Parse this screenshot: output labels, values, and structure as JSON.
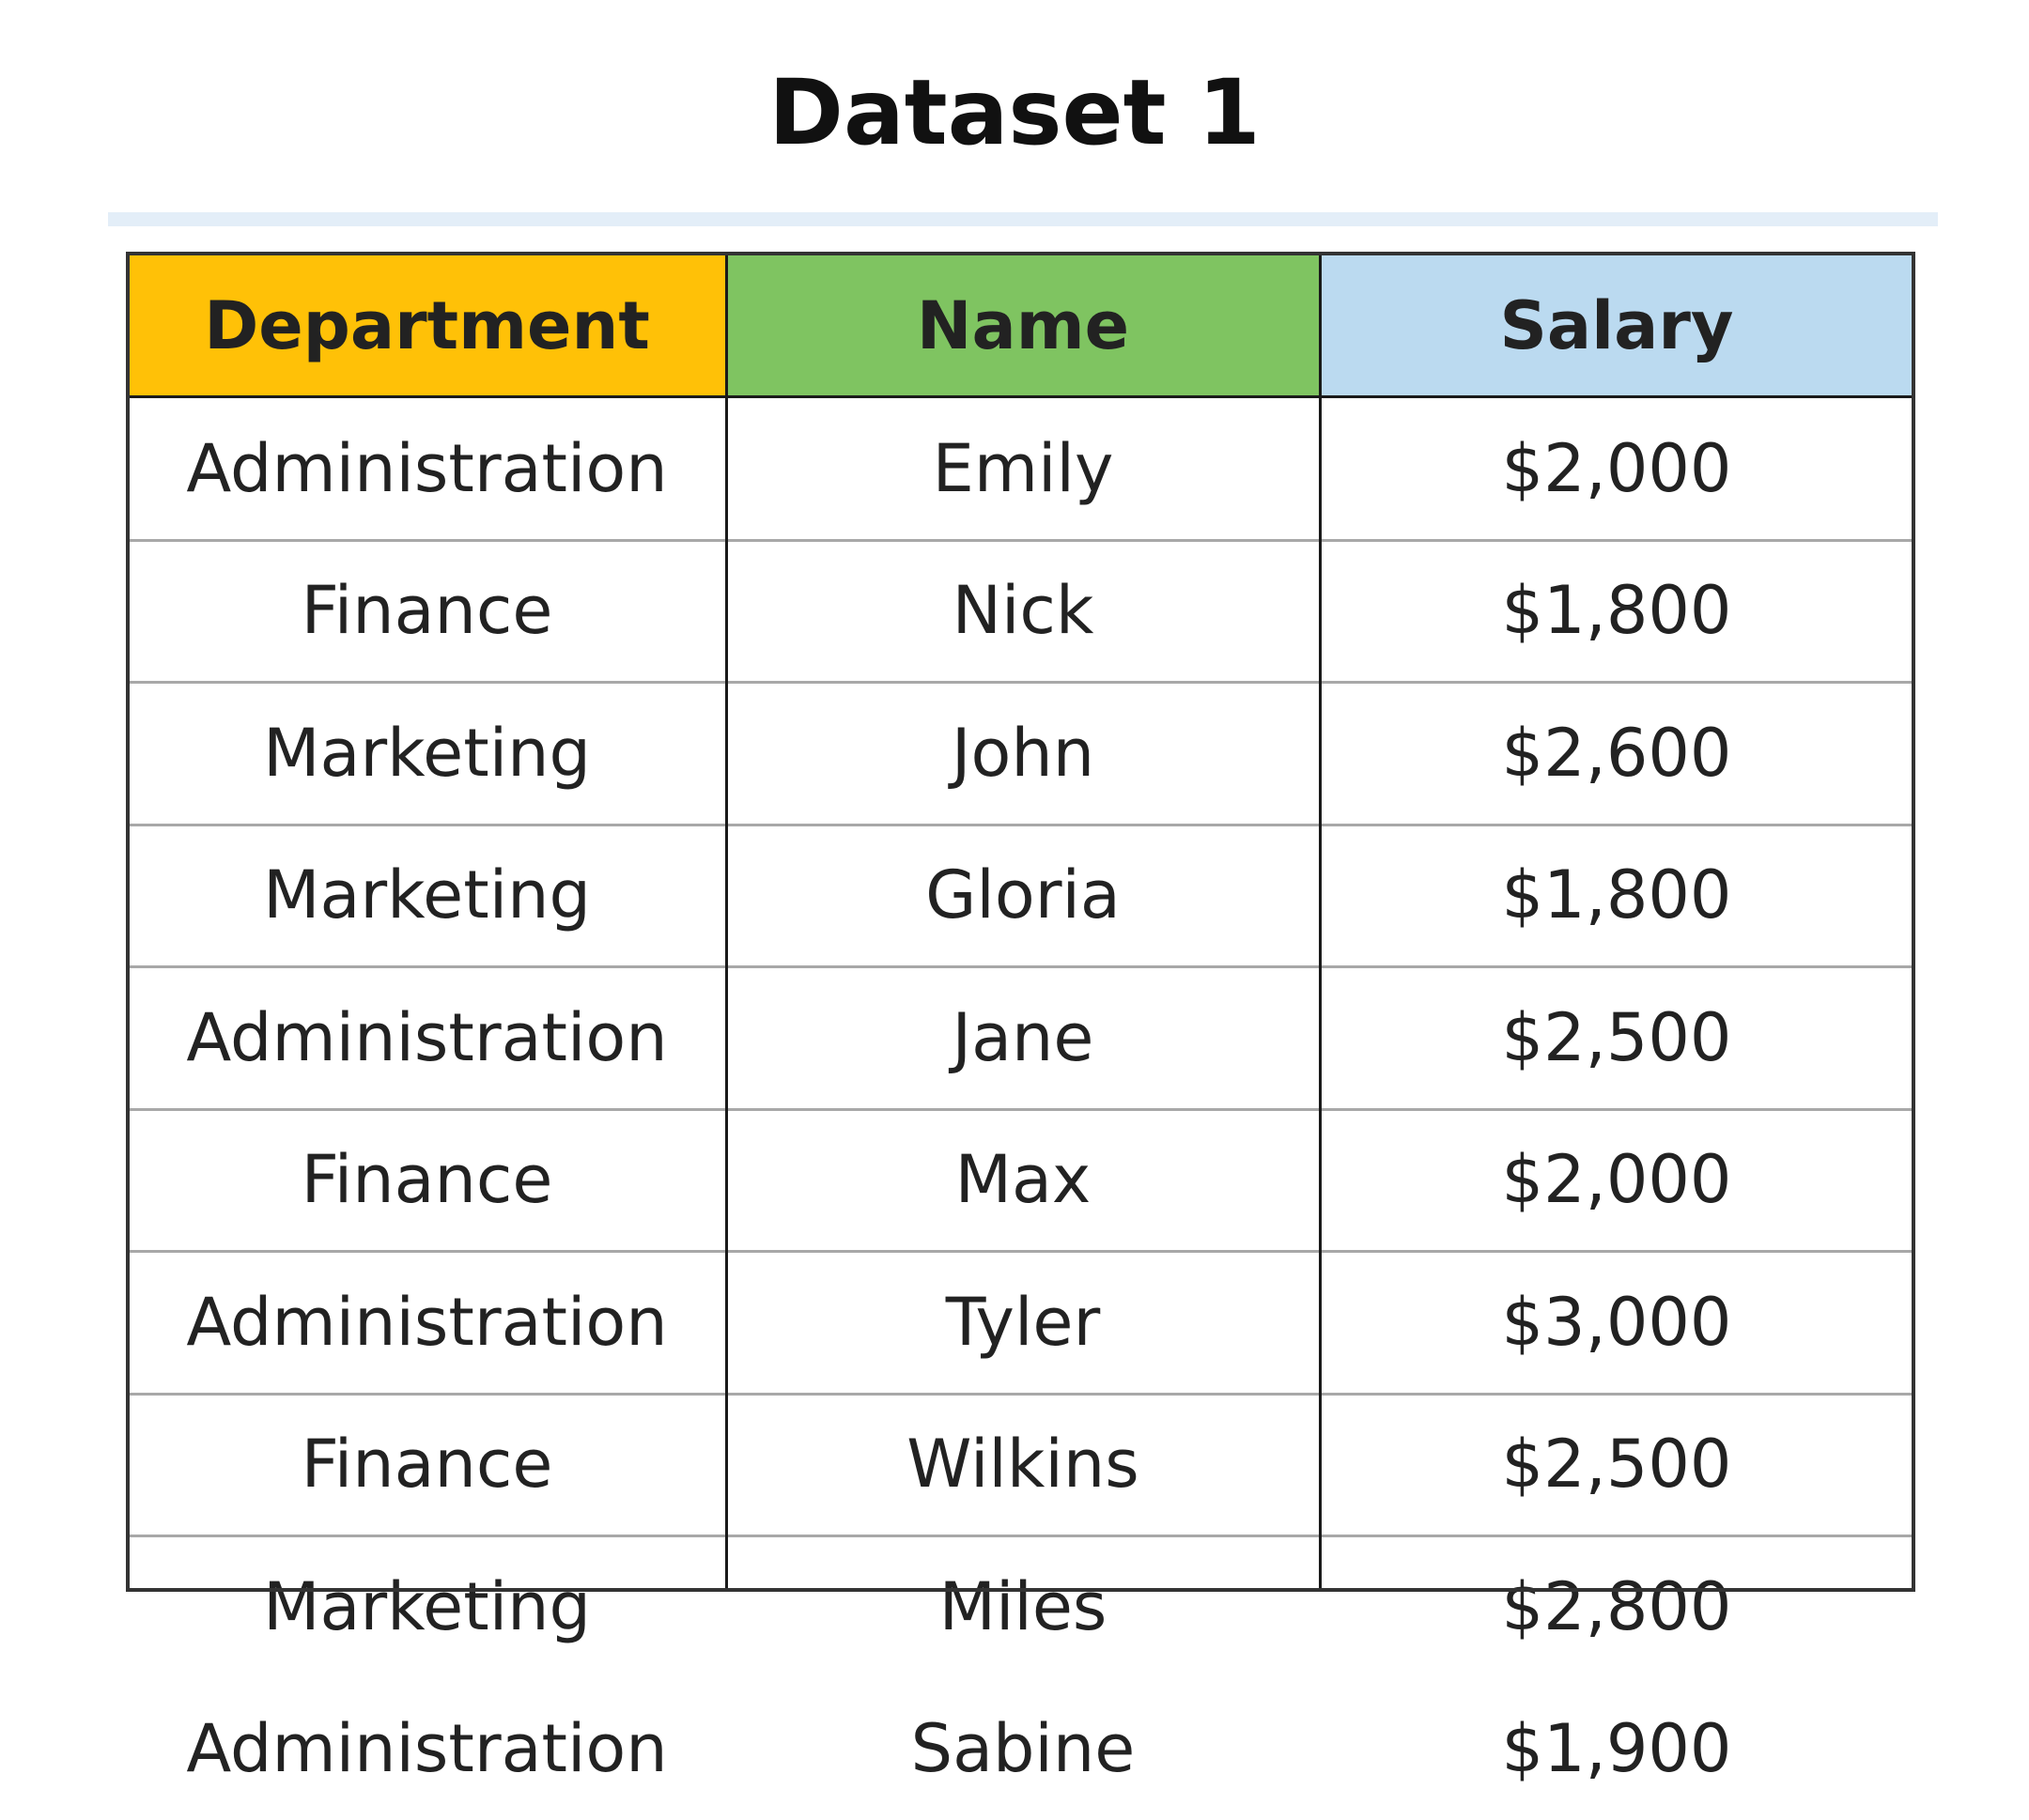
{
  "title": "Dataset 1",
  "chart_data": {
    "type": "table",
    "title": "Dataset 1",
    "columns": [
      {
        "label": "Department",
        "color": "#FFC107"
      },
      {
        "label": "Name",
        "color": "#7FC461"
      },
      {
        "label": "Salary",
        "color": "#BBDAF0"
      }
    ],
    "rows": [
      [
        "Administration",
        "Emily",
        "$2,000"
      ],
      [
        "Finance",
        "Nick",
        "$1,800"
      ],
      [
        "Marketing",
        "John",
        "$2,600"
      ],
      [
        "Marketing",
        "Gloria",
        "$1,800"
      ],
      [
        "Administration",
        "Jane",
        "$2,500"
      ],
      [
        "Finance",
        "Max",
        "$2,000"
      ],
      [
        "Administration",
        "Tyler",
        "$3,000"
      ],
      [
        "Finance",
        "Wilkins",
        "$2,500"
      ],
      [
        "Marketing",
        "Miles",
        "$2,800"
      ],
      [
        "Administration",
        "Sabine",
        "$1,900"
      ]
    ]
  }
}
